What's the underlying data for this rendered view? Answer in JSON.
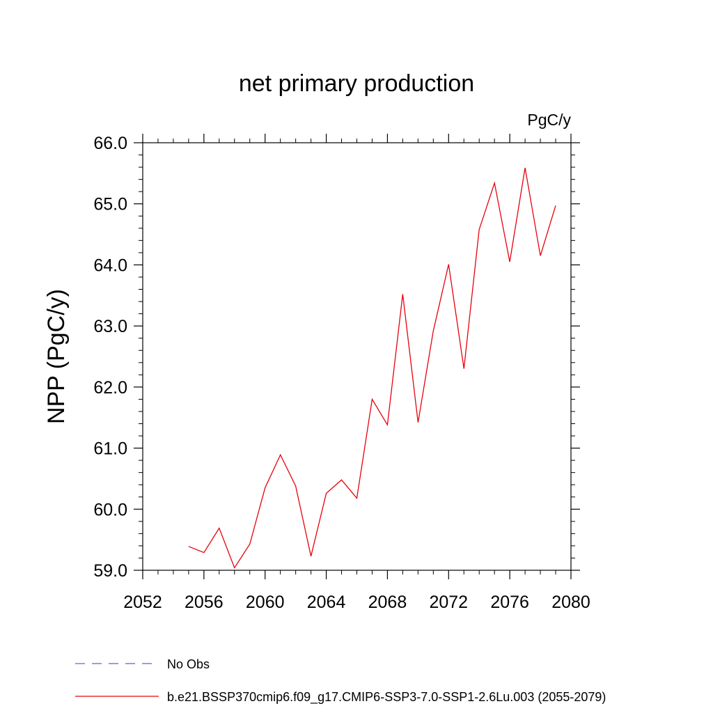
{
  "chart_data": {
    "type": "line",
    "title": "net primary production",
    "units_label": "PgC/y",
    "ylabel": "NPP  (PgC/y)",
    "xlabel": "",
    "xlim": [
      2052,
      2080
    ],
    "ylim": [
      59.0,
      66.0
    ],
    "x_ticks": [
      2052,
      2056,
      2060,
      2064,
      2068,
      2072,
      2076,
      2080
    ],
    "x_tick_labels": [
      "2052",
      "2056",
      "2060",
      "2064",
      "2068",
      "2072",
      "2076",
      "2080"
    ],
    "y_ticks": [
      59.0,
      60.0,
      61.0,
      62.0,
      63.0,
      64.0,
      65.0,
      66.0
    ],
    "y_tick_labels": [
      "59.0",
      "60.0",
      "61.0",
      "62.0",
      "63.0",
      "64.0",
      "65.0",
      "66.0"
    ],
    "grid": false,
    "legend_position": "bottom",
    "series": [
      {
        "name": "b.e21.BSSP370cmip6.f09_g17.CMIP6-SSP3-7.0-SSP1-2.6Lu.003 (2055-2079)",
        "color": "#e8000b",
        "style": "solid",
        "x": [
          2055,
          2056,
          2057,
          2058,
          2059,
          2060,
          2061,
          2062,
          2063,
          2064,
          2065,
          2066,
          2067,
          2068,
          2069,
          2070,
          2071,
          2072,
          2073,
          2074,
          2075,
          2076,
          2077,
          2078,
          2079
        ],
        "y": [
          59.39,
          59.29,
          59.69,
          59.04,
          59.43,
          60.35,
          60.89,
          60.38,
          59.23,
          60.26,
          60.48,
          60.18,
          61.8,
          61.38,
          63.52,
          61.42,
          62.92,
          64.01,
          62.3,
          64.58,
          65.34,
          64.05,
          65.59,
          64.15,
          64.97
        ]
      }
    ],
    "legend": [
      {
        "label": "No Obs",
        "color": "#6a5acd",
        "style": "dashed"
      },
      {
        "label": "b.e21.BSSP370cmip6.f09_g17.CMIP6-SSP3-7.0-SSP1-2.6Lu.003 (2055-2079)",
        "color": "#e8000b",
        "style": "solid"
      }
    ]
  }
}
